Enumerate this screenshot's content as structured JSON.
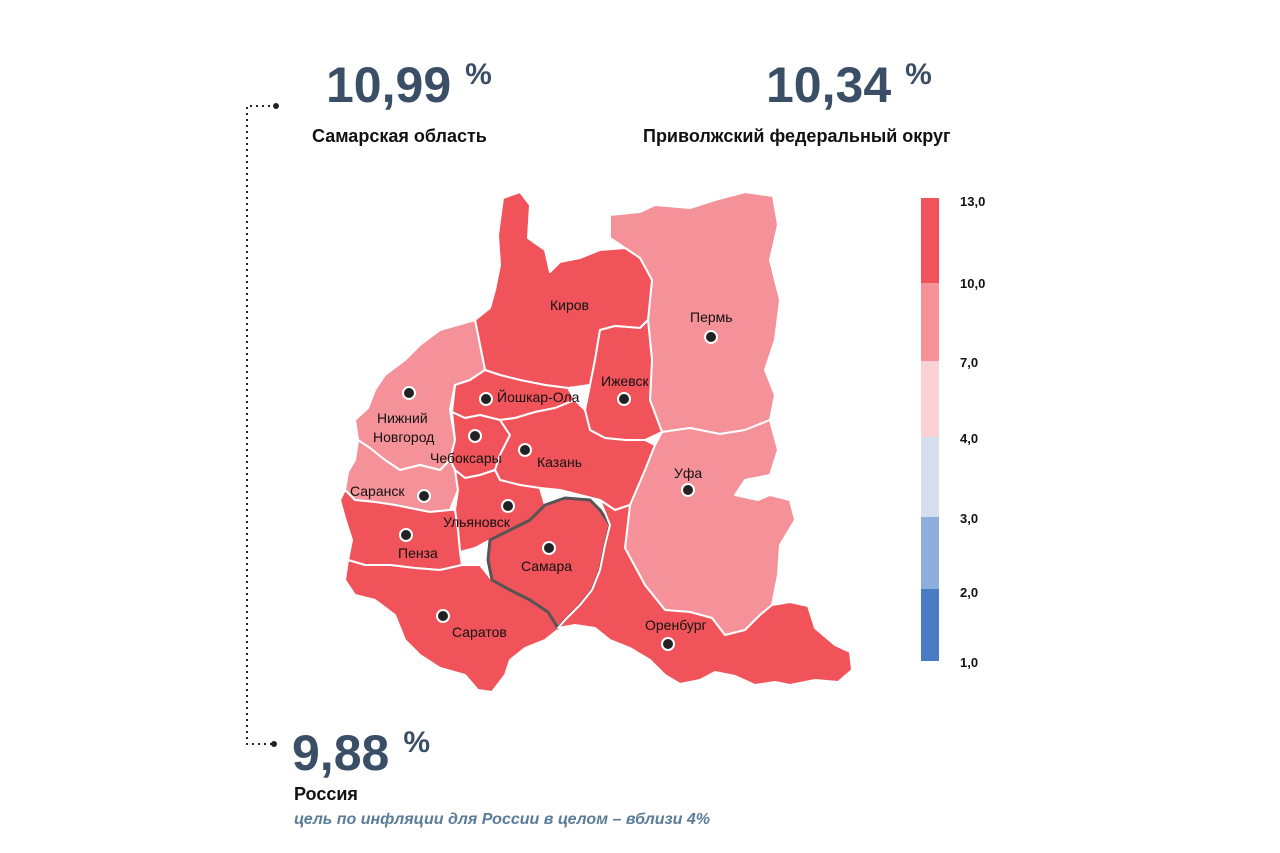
{
  "samara_stat": {
    "value": "10,99",
    "unit": "%",
    "label": "Самарская область"
  },
  "volga_stat": {
    "value": "10,34",
    "unit": "%",
    "label": "Приволжский федеральный округ"
  },
  "russia_stat": {
    "value": "9,88",
    "unit": "%",
    "label": "Россия"
  },
  "target_note": "цель по инфляции для России в целом – вблизи 4%",
  "colors": {
    "high": "#f0545a",
    "mid_high": "#f59198",
    "mid": "#f9d0d4",
    "low_mid": "#d3deef",
    "low": "#8eaede",
    "lowest": "#4a7bc4",
    "border": "#ffffff",
    "samara_border": "#555555"
  },
  "legend": {
    "ticks": [
      "13,0",
      "10,0",
      "7,0",
      "4,0",
      "3,0",
      "2,0",
      "1,0"
    ]
  },
  "cities": [
    {
      "id": "kirov",
      "name": "Киров"
    },
    {
      "id": "perm",
      "name": "Пермь"
    },
    {
      "id": "nizhny",
      "name_line1": "Нижний",
      "name_line2": "Новгород"
    },
    {
      "id": "yoshkar",
      "name": "Йошкар-Ола"
    },
    {
      "id": "izhevsk",
      "name": "Ижевск"
    },
    {
      "id": "cheboksary",
      "name": "Чебоксары"
    },
    {
      "id": "kazan",
      "name": "Казань"
    },
    {
      "id": "ufa",
      "name": "Уфа"
    },
    {
      "id": "saransk",
      "name": "Саранск"
    },
    {
      "id": "ulyanovsk",
      "name": "Ульяновск"
    },
    {
      "id": "penza",
      "name": "Пенза"
    },
    {
      "id": "samara",
      "name": "Самара"
    },
    {
      "id": "saratov",
      "name": "Саратов"
    },
    {
      "id": "orenburg",
      "name": "Оренбург"
    }
  ]
}
